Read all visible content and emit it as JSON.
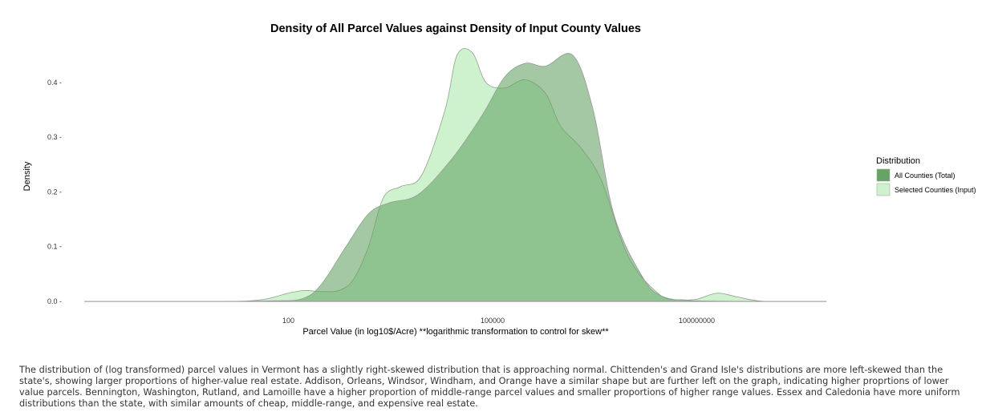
{
  "chart_data": {
    "type": "area",
    "title": "Density of All Parcel Values against Density of Input County Values",
    "xlabel": "Parcel Value (in log10$/Acre) **logarithmic transformation to control for skew**",
    "ylabel": "Density",
    "x_scale": "log10",
    "xlim": [
      0.1,
      8000000000
    ],
    "ylim": [
      0,
      0.46
    ],
    "x_ticks": [
      {
        "value": 100,
        "label": "100"
      },
      {
        "value": 100000,
        "label": "100000"
      },
      {
        "value": 100000000,
        "label": "100000000"
      }
    ],
    "y_ticks": [
      {
        "value": 0.0,
        "label": "0.0 -"
      },
      {
        "value": 0.1,
        "label": "0.1 -"
      },
      {
        "value": 0.2,
        "label": "0.2 -"
      },
      {
        "value": 0.3,
        "label": "0.3 -"
      },
      {
        "value": 0.4,
        "label": "0.4 -"
      }
    ],
    "grid": false,
    "legend": {
      "title": "Distribution",
      "position": "right",
      "entries": [
        {
          "label": "All Counties (Total)",
          "color": "#66a366"
        },
        {
          "label": "Selected Counties (Input)",
          "color": "#cdf2cd"
        }
      ]
    },
    "series": [
      {
        "name": "All Counties (Total)",
        "color": "#66a366",
        "x": [
          0.1,
          10,
          60,
          160,
          300,
          700,
          1500,
          3000,
          8000,
          25000,
          70000,
          150000,
          300000,
          600000,
          1500000,
          3000000,
          6000000,
          15000000,
          30000000,
          100000000,
          1000000000,
          8000000000
        ],
        "y": [
          0.0,
          0.0,
          0.001,
          0.005,
          0.03,
          0.1,
          0.16,
          0.18,
          0.195,
          0.26,
          0.34,
          0.41,
          0.435,
          0.43,
          0.45,
          0.35,
          0.16,
          0.05,
          0.01,
          0.001,
          0.0,
          0.0
        ]
      },
      {
        "name": "Selected Counties (Input)",
        "color": "#cdf2cd",
        "x": [
          0.1,
          10,
          40,
          100,
          170,
          300,
          550,
          900,
          1500,
          2500,
          4500,
          9000,
          20000,
          30000,
          50000,
          80000,
          150000,
          300000,
          600000,
          1000000,
          2000000,
          4000000,
          10000000,
          30000000,
          60000000,
          100000000,
          200000000,
          400000000,
          1000000000,
          8000000000
        ],
        "y": [
          0.0,
          0.0,
          0.003,
          0.015,
          0.02,
          0.018,
          0.02,
          0.04,
          0.1,
          0.19,
          0.21,
          0.23,
          0.35,
          0.45,
          0.455,
          0.4,
          0.39,
          0.405,
          0.38,
          0.32,
          0.28,
          0.22,
          0.08,
          0.01,
          0.003,
          0.004,
          0.015,
          0.008,
          0.0,
          0.0
        ]
      }
    ]
  },
  "caption": "The distribution of (log transformed) parcel values in Vermont has a slightly right-skewed distribution that is approaching normal. Chittenden's and Grand Isle's distributions are more left-skewed than the state's, showing larger proportions of higher-value real estate. Addison, Orleans, Windsor, Windham, and Orange have a similar shape but are further left on the graph, indicating higher proprtions of lower value parcels. Bennington, Washington, Rutland, and Lamoille have a higher proportion of middle-range parcel values and smaller proportions of higher range values. Essex and Caledonia have more uniform distributions than the state, with similar amounts of cheap, middle-range, and expensive real estate."
}
